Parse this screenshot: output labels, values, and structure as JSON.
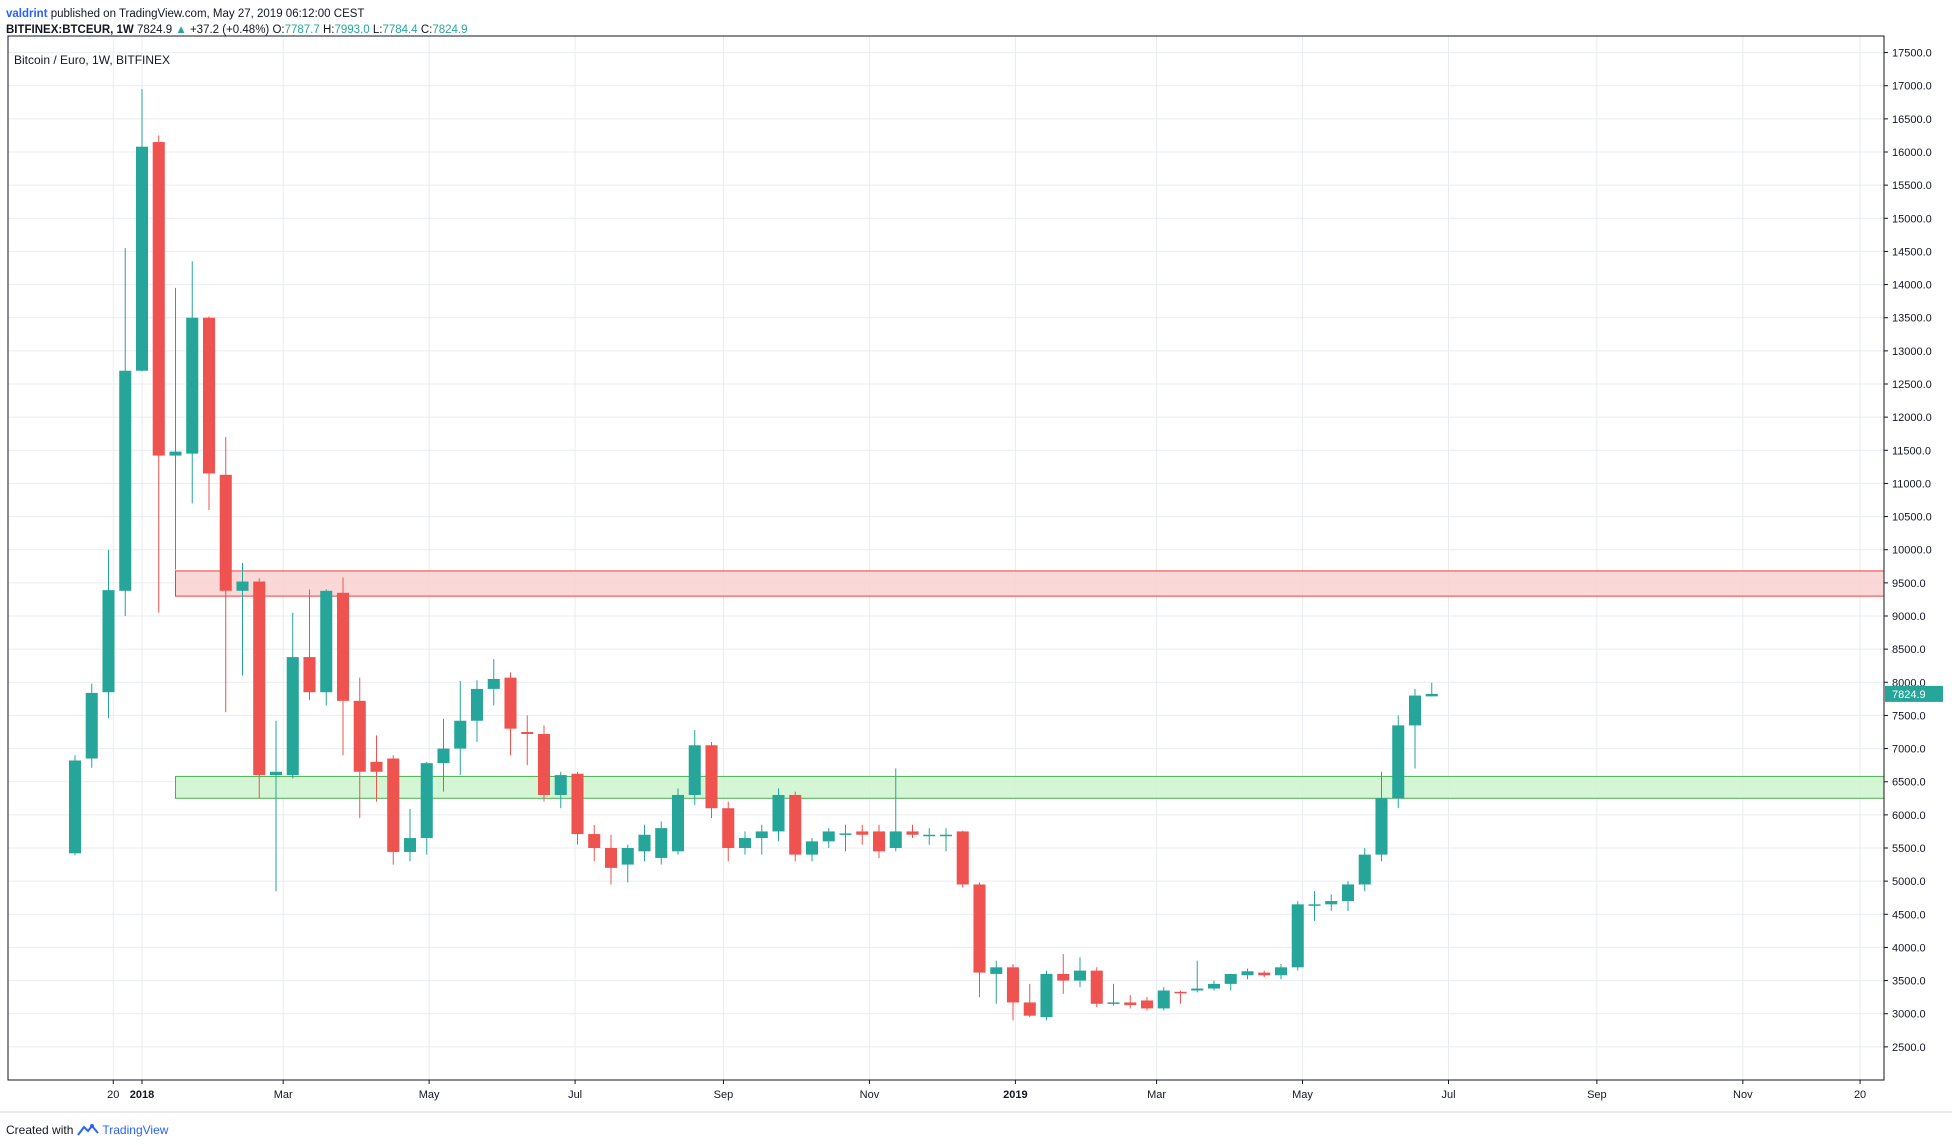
{
  "header": {
    "author": "valdrint",
    "published": "published on TradingView.com, May 27, 2019 06:12:00 CEST",
    "symbol": "BITFINEX:BTCEUR, 1W",
    "last": "7824.9",
    "change_arrow": "▲",
    "change": "+37.2 (+0.48%)",
    "o_label": "O:",
    "o": "7787.7",
    "h_label": "H:",
    "h": "7993.0",
    "l_label": "L:",
    "l": "7784.4",
    "c_label": "C:",
    "c": "7824.9"
  },
  "footer": {
    "created_with": "Created with",
    "brand": "TradingView",
    "brand_icon": "tradingview-logo-icon"
  },
  "colors": {
    "up": "#26a69a",
    "down": "#ef5350",
    "resistance_fill": "#f9d1d1",
    "resistance_border": "#ef3d3d",
    "support_fill": "#ccf5cc",
    "support_border": "#4caf50",
    "price_label_bg": "#26a69a",
    "grid": "#e9edf2",
    "axis": "#131722"
  },
  "chart_data": {
    "type": "candlestick",
    "title": "Bitcoin / Euro, 1W, BITFINEX",
    "timeframe": "1W",
    "y_scale": "linear",
    "ylim": [
      2000,
      17750
    ],
    "y_ticks": [
      2500,
      3000,
      3500,
      4000,
      4500,
      5000,
      5500,
      6000,
      6500,
      7000,
      7500,
      8000,
      8500,
      9000,
      9500,
      10000,
      10500,
      11000,
      11500,
      12000,
      12500,
      13000,
      13500,
      14000,
      14500,
      15000,
      15500,
      16000,
      16500,
      17000,
      17500
    ],
    "x_range": [
      "2017-11-06",
      "2019-12-30"
    ],
    "x_ticks": [
      {
        "date": "2017-12-20",
        "label": "20",
        "bold": false
      },
      {
        "date": "2018-01-01",
        "label": "2018",
        "bold": true
      },
      {
        "date": "2018-03-01",
        "label": "Mar",
        "bold": false
      },
      {
        "date": "2018-05-01",
        "label": "May",
        "bold": false
      },
      {
        "date": "2018-07-01",
        "label": "Jul",
        "bold": false
      },
      {
        "date": "2018-09-01",
        "label": "Sep",
        "bold": false
      },
      {
        "date": "2018-11-01",
        "label": "Nov",
        "bold": false
      },
      {
        "date": "2019-01-01",
        "label": "2019",
        "bold": true
      },
      {
        "date": "2019-03-01",
        "label": "Mar",
        "bold": false
      },
      {
        "date": "2019-05-01",
        "label": "May",
        "bold": false
      },
      {
        "date": "2019-07-01",
        "label": "Jul",
        "bold": false
      },
      {
        "date": "2019-09-01",
        "label": "Sep",
        "bold": false
      },
      {
        "date": "2019-11-01",
        "label": "Nov",
        "bold": false
      },
      {
        "date": "2019-12-20",
        "label": "20",
        "bold": false
      }
    ],
    "grid": true,
    "last_price_label": "7824.9",
    "last_price": 7824.9,
    "zones": [
      {
        "name": "resistance",
        "from": "2018-01-15",
        "to": "2019-12-30",
        "low": 9300,
        "high": 9680
      },
      {
        "name": "support",
        "from": "2018-01-15",
        "to": "2019-12-30",
        "low": 6250,
        "high": 6580
      }
    ],
    "candles": [
      {
        "t": "2017-12-04",
        "o": 5420,
        "h": 6900,
        "l": 5390,
        "c": 6820
      },
      {
        "t": "2017-12-11",
        "o": 6850,
        "h": 7980,
        "l": 6710,
        "c": 7840
      },
      {
        "t": "2017-12-18",
        "o": 7850,
        "h": 10000,
        "l": 7460,
        "c": 9390
      },
      {
        "t": "2017-12-25",
        "o": 9380,
        "h": 14550,
        "l": 9000,
        "c": 12700
      },
      {
        "t": "2018-01-01",
        "o": 12700,
        "h": 16950,
        "l": 12690,
        "c": 16080
      },
      {
        "t": "2018-01-08",
        "o": 16150,
        "h": 16250,
        "l": 9050,
        "c": 11420
      },
      {
        "t": "2018-01-15",
        "o": 11420,
        "h": 13950,
        "l": 9700,
        "c": 11480
      },
      {
        "t": "2018-01-22",
        "o": 11450,
        "h": 14350,
        "l": 10700,
        "c": 13500
      },
      {
        "t": "2018-01-29",
        "o": 13500,
        "h": 13520,
        "l": 10600,
        "c": 11150
      },
      {
        "t": "2018-02-05",
        "o": 11130,
        "h": 11700,
        "l": 7550,
        "c": 9380
      },
      {
        "t": "2018-02-12",
        "o": 9380,
        "h": 9800,
        "l": 8100,
        "c": 9520
      },
      {
        "t": "2018-02-19",
        "o": 9520,
        "h": 9570,
        "l": 6250,
        "c": 6600
      },
      {
        "t": "2018-02-26",
        "o": 6600,
        "h": 7420,
        "l": 4850,
        "c": 6650
      },
      {
        "t": "2018-03-05",
        "o": 6600,
        "h": 9050,
        "l": 6550,
        "c": 8380
      },
      {
        "t": "2018-03-12",
        "o": 8380,
        "h": 9400,
        "l": 7730,
        "c": 7850
      },
      {
        "t": "2018-03-19",
        "o": 7850,
        "h": 9400,
        "l": 7650,
        "c": 9380
      },
      {
        "t": "2018-03-26",
        "o": 9350,
        "h": 9580,
        "l": 6900,
        "c": 7720
      },
      {
        "t": "2018-04-02",
        "o": 7720,
        "h": 8070,
        "l": 5950,
        "c": 6650
      },
      {
        "t": "2018-04-09",
        "o": 6800,
        "h": 7200,
        "l": 6200,
        "c": 6650
      },
      {
        "t": "2018-04-16",
        "o": 6850,
        "h": 6900,
        "l": 5250,
        "c": 5440
      },
      {
        "t": "2018-04-23",
        "o": 5440,
        "h": 6090,
        "l": 5300,
        "c": 5650
      },
      {
        "t": "2018-04-30",
        "o": 5650,
        "h": 6800,
        "l": 5400,
        "c": 6780
      },
      {
        "t": "2018-05-07",
        "o": 6780,
        "h": 7450,
        "l": 6350,
        "c": 7000
      },
      {
        "t": "2018-05-14",
        "o": 7000,
        "h": 8020,
        "l": 6600,
        "c": 7420
      },
      {
        "t": "2018-05-21",
        "o": 7420,
        "h": 8030,
        "l": 7100,
        "c": 7900
      },
      {
        "t": "2018-05-28",
        "o": 7900,
        "h": 8350,
        "l": 7650,
        "c": 8050
      },
      {
        "t": "2018-06-04",
        "o": 8070,
        "h": 8150,
        "l": 6900,
        "c": 7300
      },
      {
        "t": "2018-06-11",
        "o": 7250,
        "h": 7500,
        "l": 6750,
        "c": 7220
      },
      {
        "t": "2018-06-18",
        "o": 7220,
        "h": 7350,
        "l": 6200,
        "c": 6300
      },
      {
        "t": "2018-06-25",
        "o": 6300,
        "h": 6650,
        "l": 6100,
        "c": 6600
      },
      {
        "t": "2018-07-02",
        "o": 6620,
        "h": 6650,
        "l": 5550,
        "c": 5710
      },
      {
        "t": "2018-07-09",
        "o": 5710,
        "h": 5850,
        "l": 5300,
        "c": 5500
      },
      {
        "t": "2018-07-16",
        "o": 5500,
        "h": 5700,
        "l": 4950,
        "c": 5200
      },
      {
        "t": "2018-07-23",
        "o": 5250,
        "h": 5550,
        "l": 4980,
        "c": 5500
      },
      {
        "t": "2018-07-30",
        "o": 5450,
        "h": 5850,
        "l": 5300,
        "c": 5700
      },
      {
        "t": "2018-08-06",
        "o": 5350,
        "h": 5900,
        "l": 5250,
        "c": 5800
      },
      {
        "t": "2018-08-13",
        "o": 5450,
        "h": 6400,
        "l": 5400,
        "c": 6300
      },
      {
        "t": "2018-08-20",
        "o": 6300,
        "h": 7280,
        "l": 6150,
        "c": 7050
      },
      {
        "t": "2018-08-27",
        "o": 7050,
        "h": 7100,
        "l": 5950,
        "c": 6100
      },
      {
        "t": "2018-09-03",
        "o": 6100,
        "h": 6200,
        "l": 5300,
        "c": 5500
      },
      {
        "t": "2018-09-10",
        "o": 5500,
        "h": 5750,
        "l": 5400,
        "c": 5650
      },
      {
        "t": "2018-09-17",
        "o": 5650,
        "h": 5850,
        "l": 5400,
        "c": 5750
      },
      {
        "t": "2018-09-24",
        "o": 5750,
        "h": 6400,
        "l": 5600,
        "c": 6300
      },
      {
        "t": "2018-10-01",
        "o": 6300,
        "h": 6350,
        "l": 5300,
        "c": 5400
      },
      {
        "t": "2018-10-08",
        "o": 5400,
        "h": 5650,
        "l": 5300,
        "c": 5600
      },
      {
        "t": "2018-10-15",
        "o": 5600,
        "h": 5800,
        "l": 5500,
        "c": 5750
      },
      {
        "t": "2018-10-22",
        "o": 5700,
        "h": 5850,
        "l": 5450,
        "c": 5720
      },
      {
        "t": "2018-10-29",
        "o": 5750,
        "h": 5850,
        "l": 5550,
        "c": 5700
      },
      {
        "t": "2018-11-05",
        "o": 5750,
        "h": 5850,
        "l": 5350,
        "c": 5450
      },
      {
        "t": "2018-11-12",
        "o": 5500,
        "h": 6700,
        "l": 5450,
        "c": 5750
      },
      {
        "t": "2018-11-19",
        "o": 5750,
        "h": 5850,
        "l": 5650,
        "c": 5700
      },
      {
        "t": "2018-11-26",
        "o": 5700,
        "h": 5800,
        "l": 5550,
        "c": 5700
      },
      {
        "t": "2018-12-03",
        "o": 5700,
        "h": 5800,
        "l": 5450,
        "c": 5700
      },
      {
        "t": "2018-12-10",
        "o": 5750,
        "h": 5760,
        "l": 4900,
        "c": 4950
      },
      {
        "t": "2018-12-17",
        "o": 4950,
        "h": 4980,
        "l": 3250,
        "c": 3620
      },
      {
        "t": "2018-12-24",
        "o": 3600,
        "h": 3800,
        "l": 3150,
        "c": 3700
      },
      {
        "t": "2018-12-31",
        "o": 3700,
        "h": 3750,
        "l": 2900,
        "c": 3170
      },
      {
        "t": "2019-01-07",
        "o": 3170,
        "h": 3450,
        "l": 2950,
        "c": 2970
      },
      {
        "t": "2019-01-14",
        "o": 2950,
        "h": 3650,
        "l": 2900,
        "c": 3600
      },
      {
        "t": "2019-01-21",
        "o": 3600,
        "h": 3900,
        "l": 3300,
        "c": 3500
      },
      {
        "t": "2019-01-28",
        "o": 3500,
        "h": 3850,
        "l": 3400,
        "c": 3650
      },
      {
        "t": "2019-02-04",
        "o": 3650,
        "h": 3700,
        "l": 3100,
        "c": 3150
      },
      {
        "t": "2019-02-11",
        "o": 3170,
        "h": 3450,
        "l": 3120,
        "c": 3170
      },
      {
        "t": "2019-02-18",
        "o": 3170,
        "h": 3280,
        "l": 3080,
        "c": 3130
      },
      {
        "t": "2019-02-25",
        "o": 3200,
        "h": 3250,
        "l": 3050,
        "c": 3080
      },
      {
        "t": "2019-03-04",
        "o": 3080,
        "h": 3400,
        "l": 3050,
        "c": 3350
      },
      {
        "t": "2019-03-11",
        "o": 3330,
        "h": 3350,
        "l": 3150,
        "c": 3320
      },
      {
        "t": "2019-03-18",
        "o": 3350,
        "h": 3800,
        "l": 3320,
        "c": 3380
      },
      {
        "t": "2019-03-25",
        "o": 3380,
        "h": 3500,
        "l": 3350,
        "c": 3450
      },
      {
        "t": "2019-04-01",
        "o": 3450,
        "h": 3550,
        "l": 3350,
        "c": 3600
      },
      {
        "t": "2019-04-08",
        "o": 3580,
        "h": 3680,
        "l": 3520,
        "c": 3640
      },
      {
        "t": "2019-04-15",
        "o": 3620,
        "h": 3650,
        "l": 3550,
        "c": 3580
      },
      {
        "t": "2019-04-22",
        "o": 3580,
        "h": 3750,
        "l": 3520,
        "c": 3700
      },
      {
        "t": "2019-04-29",
        "o": 3700,
        "h": 4700,
        "l": 3650,
        "c": 4650
      },
      {
        "t": "2019-05-06",
        "o": 4650,
        "h": 4850,
        "l": 4400,
        "c": 4650
      },
      {
        "t": "2019-05-13",
        "o": 4650,
        "h": 4800,
        "l": 4550,
        "c": 4700
      },
      {
        "t": "2019-05-20",
        "o": 4700,
        "h": 5000,
        "l": 4550,
        "c": 4950
      },
      {
        "t": "2019-05-27",
        "o": 4950,
        "h": 5500,
        "l": 4850,
        "c": 5400
      },
      {
        "t": "2019-06-03",
        "o": 5400,
        "h": 6650,
        "l": 5300,
        "c": 6250
      },
      {
        "t": "2019-06-10",
        "o": 6250,
        "h": 7500,
        "l": 6100,
        "c": 7350
      },
      {
        "t": "2019-06-17",
        "o": 7350,
        "h": 7900,
        "l": 6700,
        "c": 7800
      },
      {
        "t": "2019-06-24",
        "o": 7787.7,
        "h": 7993.0,
        "l": 7784.4,
        "c": 7824.9
      }
    ]
  }
}
